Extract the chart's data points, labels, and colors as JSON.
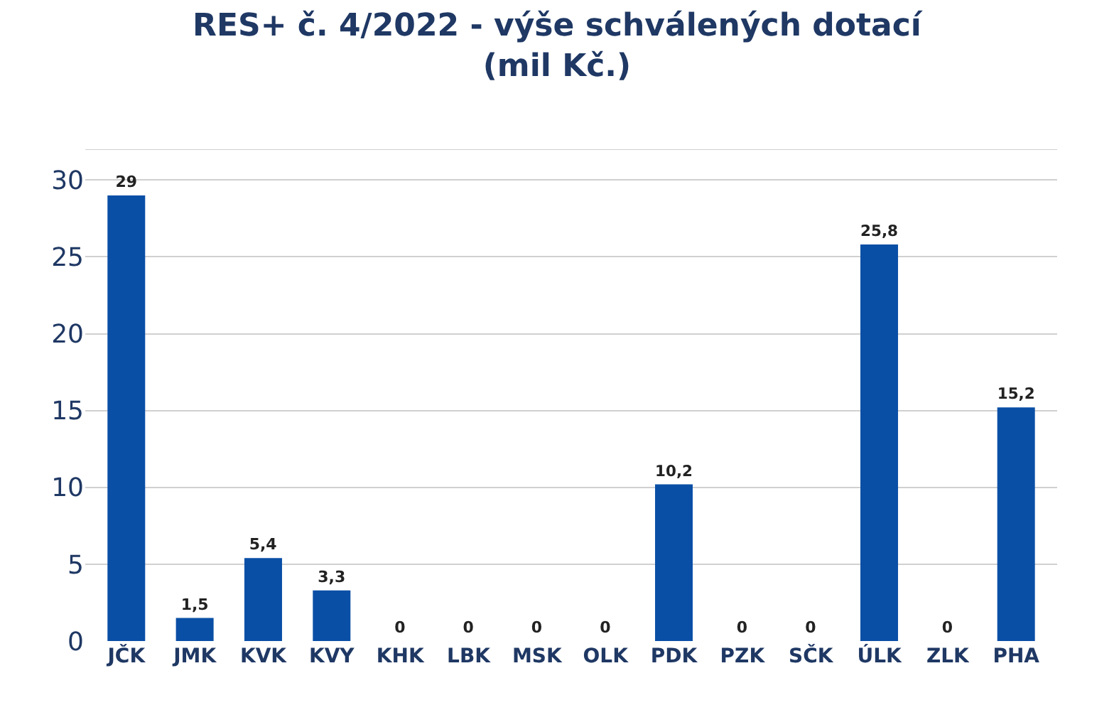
{
  "chart_data": {
    "type": "bar",
    "title": "RES+ č. 4/2022 - výše schválených dotací\n(mil Kč.)",
    "categories": [
      "JČK",
      "JMK",
      "KVK",
      "KVY",
      "KHK",
      "LBK",
      "MSK",
      "OLK",
      "PDK",
      "PZK",
      "SČK",
      "ÚLK",
      "ZLK",
      "PHA"
    ],
    "values": [
      29,
      1.5,
      5.4,
      3.3,
      0,
      0,
      0,
      0,
      10.2,
      0,
      0,
      25.8,
      0,
      15.2
    ],
    "value_labels": [
      "29",
      "1,5",
      "5,4",
      "3,3",
      "0",
      "0",
      "0",
      "0",
      "10,2",
      "0",
      "0",
      "25,8",
      "0",
      "15,2"
    ],
    "color": "#0a4fa6",
    "ylim": [
      0,
      32
    ],
    "yticks": [
      0,
      5,
      10,
      15,
      20,
      25,
      30
    ],
    "grid": "y"
  }
}
